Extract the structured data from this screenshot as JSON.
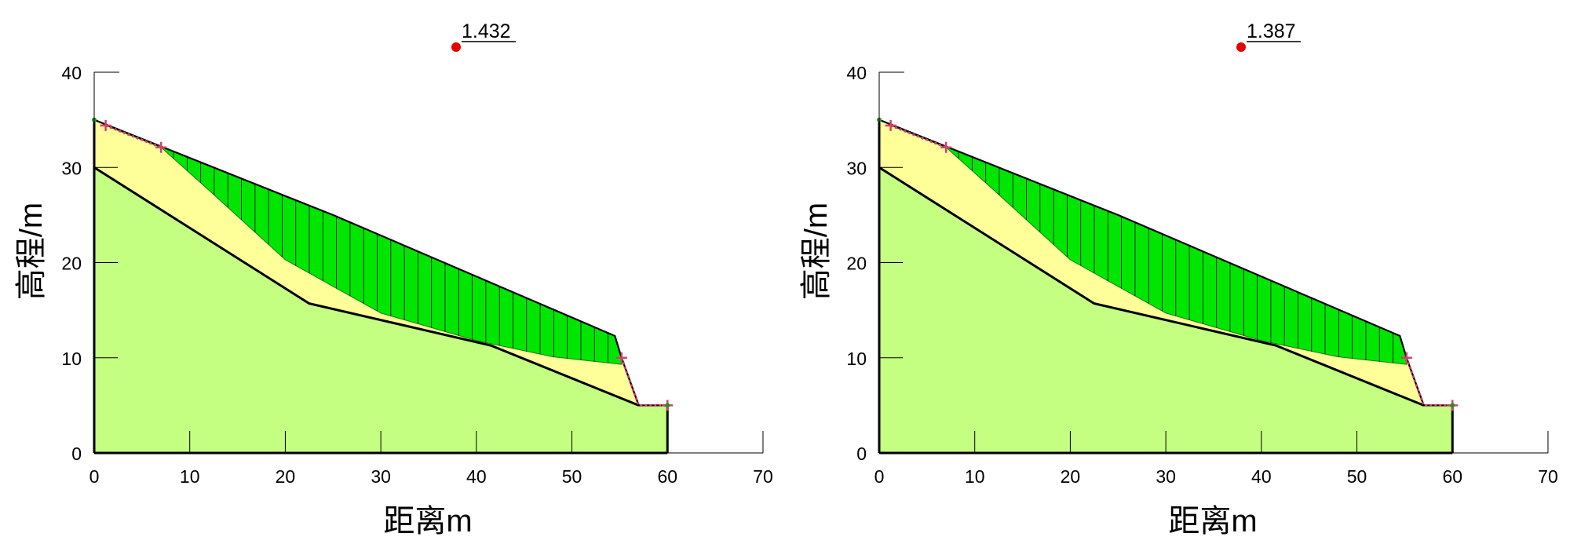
{
  "panels": [
    {
      "id": "left",
      "factor_of_safety": "1.432",
      "ylabel": "高程/m",
      "xlabel": "距离m",
      "x_ticks": [
        "0",
        "10",
        "20",
        "30",
        "40",
        "50",
        "60",
        "70"
      ],
      "y_ticks": [
        "0",
        "10",
        "20",
        "30",
        "40"
      ]
    },
    {
      "id": "right",
      "factor_of_safety": "1.387",
      "ylabel": "高程/m",
      "xlabel": "距离m",
      "x_ticks": [
        "0",
        "10",
        "20",
        "30",
        "40",
        "50",
        "60",
        "70"
      ],
      "y_ticks": [
        "0",
        "10",
        "20",
        "30",
        "40"
      ]
    }
  ],
  "model": {
    "x_range": [
      0,
      70
    ],
    "y_range": [
      0,
      40
    ],
    "ground_surface": [
      [
        0,
        35
      ],
      [
        22.5,
        26
      ],
      [
        25,
        25
      ],
      [
        54.5,
        12.3
      ],
      [
        55.2,
        10
      ],
      [
        57,
        5
      ],
      [
        60,
        5
      ]
    ],
    "soft_layer_bottom": [
      [
        0,
        30
      ],
      [
        22.5,
        15.7
      ],
      [
        41.5,
        11.3
      ],
      [
        57,
        5
      ]
    ],
    "slip_surface": [
      [
        1.2,
        34.4
      ],
      [
        7,
        32.1
      ],
      [
        12,
        27.6
      ],
      [
        20,
        20.3
      ],
      [
        30,
        14.7
      ],
      [
        40,
        11.8
      ],
      [
        48,
        10.1
      ],
      [
        55.2,
        9.3
      ]
    ],
    "entry_points": [
      [
        1.2,
        34.4
      ],
      [
        7,
        32.1
      ]
    ],
    "exit_points": [
      [
        55.2,
        10
      ],
      [
        60,
        5
      ]
    ],
    "slice_count": 38,
    "colors": {
      "bedrock": "#c4ff82",
      "soft_layer": "#ffff9a",
      "sliding_mass": "#00e600",
      "outline": "#000000",
      "marker": "#d1416f",
      "center_point": "#e60000"
    }
  }
}
